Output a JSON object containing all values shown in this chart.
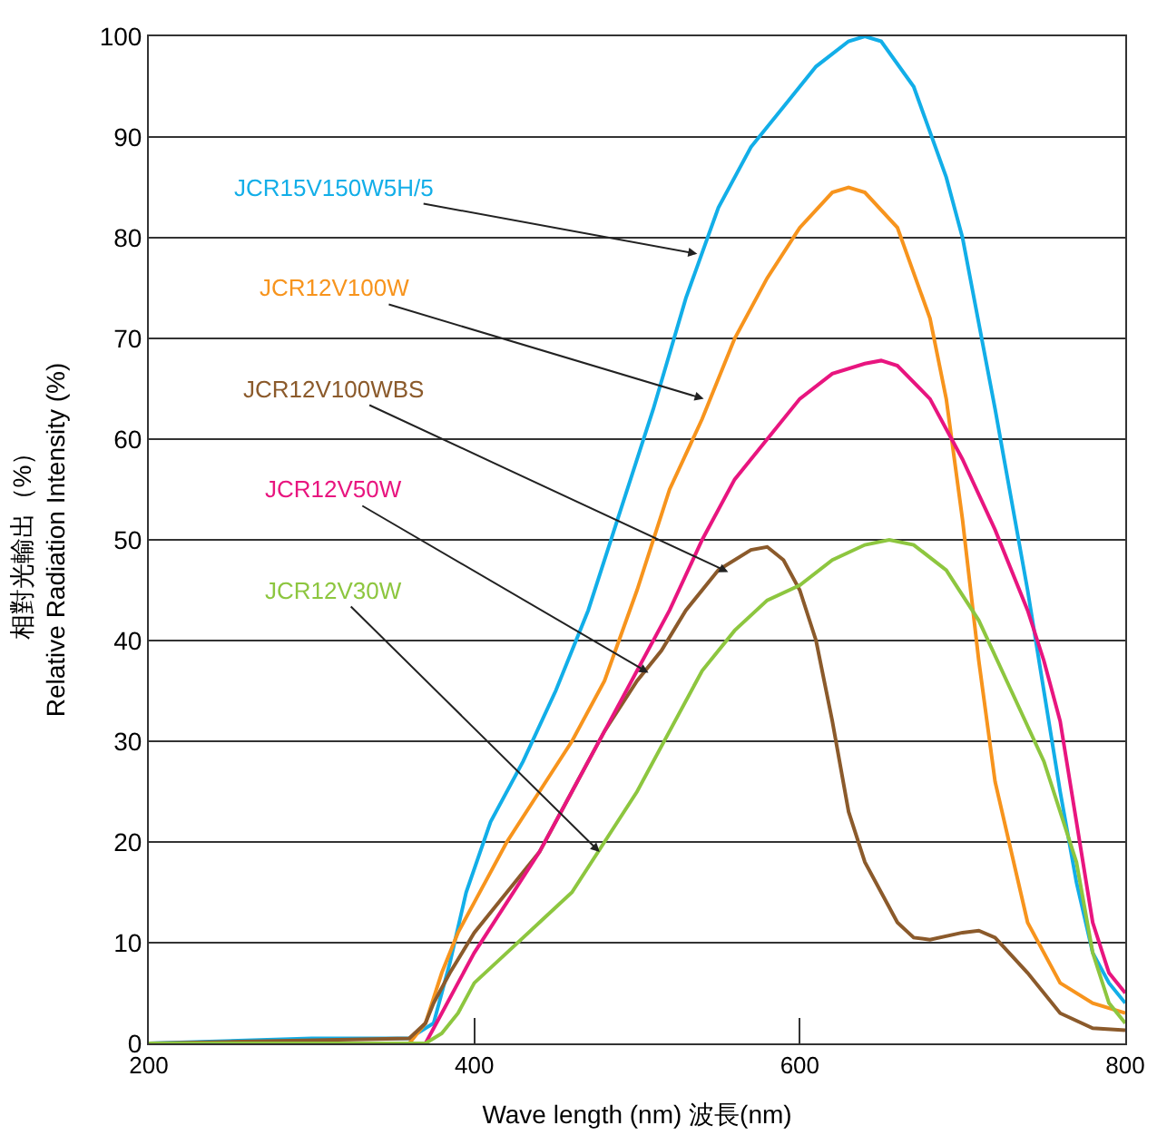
{
  "chart_data": {
    "type": "line",
    "xlabel": "Wave length (nm) 波長(nm)",
    "ylabel": "相對光輸出（%）\nRelative Radiation Intensity (%)",
    "xlim": [
      200,
      800
    ],
    "xticks": [
      200,
      400,
      600,
      800
    ],
    "ylim": [
      0,
      100
    ],
    "yticks": [
      0,
      10,
      20,
      30,
      40,
      50,
      60,
      70,
      80,
      90,
      100
    ],
    "grid": "y",
    "marker": "none",
    "line_style": "solid",
    "series": [
      {
        "color": "#12aee8",
        "x": [
          200,
          300,
          360,
          375,
          385,
          395,
          410,
          430,
          450,
          470,
          490,
          510,
          530,
          550,
          570,
          590,
          610,
          630,
          640,
          650,
          670,
          690,
          700,
          720,
          740,
          760,
          770,
          780,
          790,
          800
        ],
        "values": [
          0,
          0.5,
          0.5,
          2,
          8,
          15,
          22,
          28,
          35,
          43,
          53,
          63,
          74,
          83,
          89,
          93,
          97,
          99.5,
          100,
          99.5,
          95,
          86,
          80,
          63,
          45,
          25,
          16,
          9,
          6,
          4
        ]
      },
      {
        "color": "#f7941d",
        "x": [
          200,
          360,
          370,
          380,
          390,
          400,
          420,
          440,
          460,
          480,
          500,
          520,
          540,
          560,
          580,
          600,
          620,
          630,
          640,
          660,
          680,
          690,
          700,
          710,
          720,
          740,
          760,
          780,
          800
        ],
        "values": [
          0,
          0,
          2,
          7,
          11,
          14,
          20,
          25,
          30,
          36,
          45,
          55,
          62,
          70,
          76,
          81,
          84.5,
          85,
          84.5,
          81,
          72,
          64,
          52,
          38,
          26,
          12,
          6,
          4,
          3
        ]
      },
      {
        "color": "#8b5a2b",
        "x": [
          200,
          360,
          370,
          375,
          385,
          400,
          420,
          440,
          460,
          480,
          500,
          515,
          530,
          550,
          570,
          580,
          590,
          600,
          610,
          620,
          630,
          640,
          660,
          670,
          680,
          700,
          710,
          720,
          740,
          760,
          780,
          800
        ],
        "values": [
          0,
          0.5,
          2,
          4,
          7,
          11,
          15,
          19,
          25,
          31,
          36,
          39,
          43,
          47,
          49,
          49.3,
          48,
          45,
          40,
          32,
          23,
          18,
          12,
          10.5,
          10.3,
          11,
          11.2,
          10.5,
          7,
          3,
          1.5,
          1.3
        ]
      },
      {
        "color": "#e8157f",
        "x": [
          200,
          370,
          380,
          390,
          400,
          420,
          440,
          460,
          480,
          500,
          520,
          540,
          560,
          580,
          600,
          620,
          640,
          650,
          660,
          680,
          700,
          720,
          740,
          750,
          760,
          770,
          780,
          790,
          800
        ],
        "values": [
          0,
          0,
          3,
          6,
          9,
          14,
          19,
          25,
          31,
          37,
          43,
          50,
          56,
          60,
          64,
          66.5,
          67.5,
          67.8,
          67.3,
          64,
          58,
          51,
          43,
          38,
          32,
          22,
          12,
          7,
          5
        ]
      },
      {
        "color": "#8dc63f",
        "x": [
          200,
          370,
          380,
          390,
          400,
          420,
          440,
          460,
          480,
          500,
          520,
          540,
          560,
          580,
          600,
          620,
          640,
          655,
          670,
          690,
          710,
          730,
          750,
          770,
          780,
          790,
          800
        ],
        "values": [
          0,
          0,
          1,
          3,
          6,
          9,
          12,
          15,
          20,
          25,
          31,
          37,
          41,
          44,
          45.5,
          48,
          49.5,
          50,
          49.5,
          47,
          42,
          35,
          28,
          18,
          9,
          4,
          2
        ]
      }
    ],
    "annotations": [
      {
        "text": "JCR15V150W5H/5",
        "x": 537,
        "y": 78.4
      },
      {
        "text": "JCR12V100W",
        "x": 541,
        "y": 64
      },
      {
        "text": "JCR12V100WBS",
        "x": 556,
        "y": 46.8
      },
      {
        "text": "JCR12V50W",
        "x": 507,
        "y": 36.8
      },
      {
        "text": "JCR12V30W",
        "x": 477,
        "y": 19
      }
    ]
  }
}
